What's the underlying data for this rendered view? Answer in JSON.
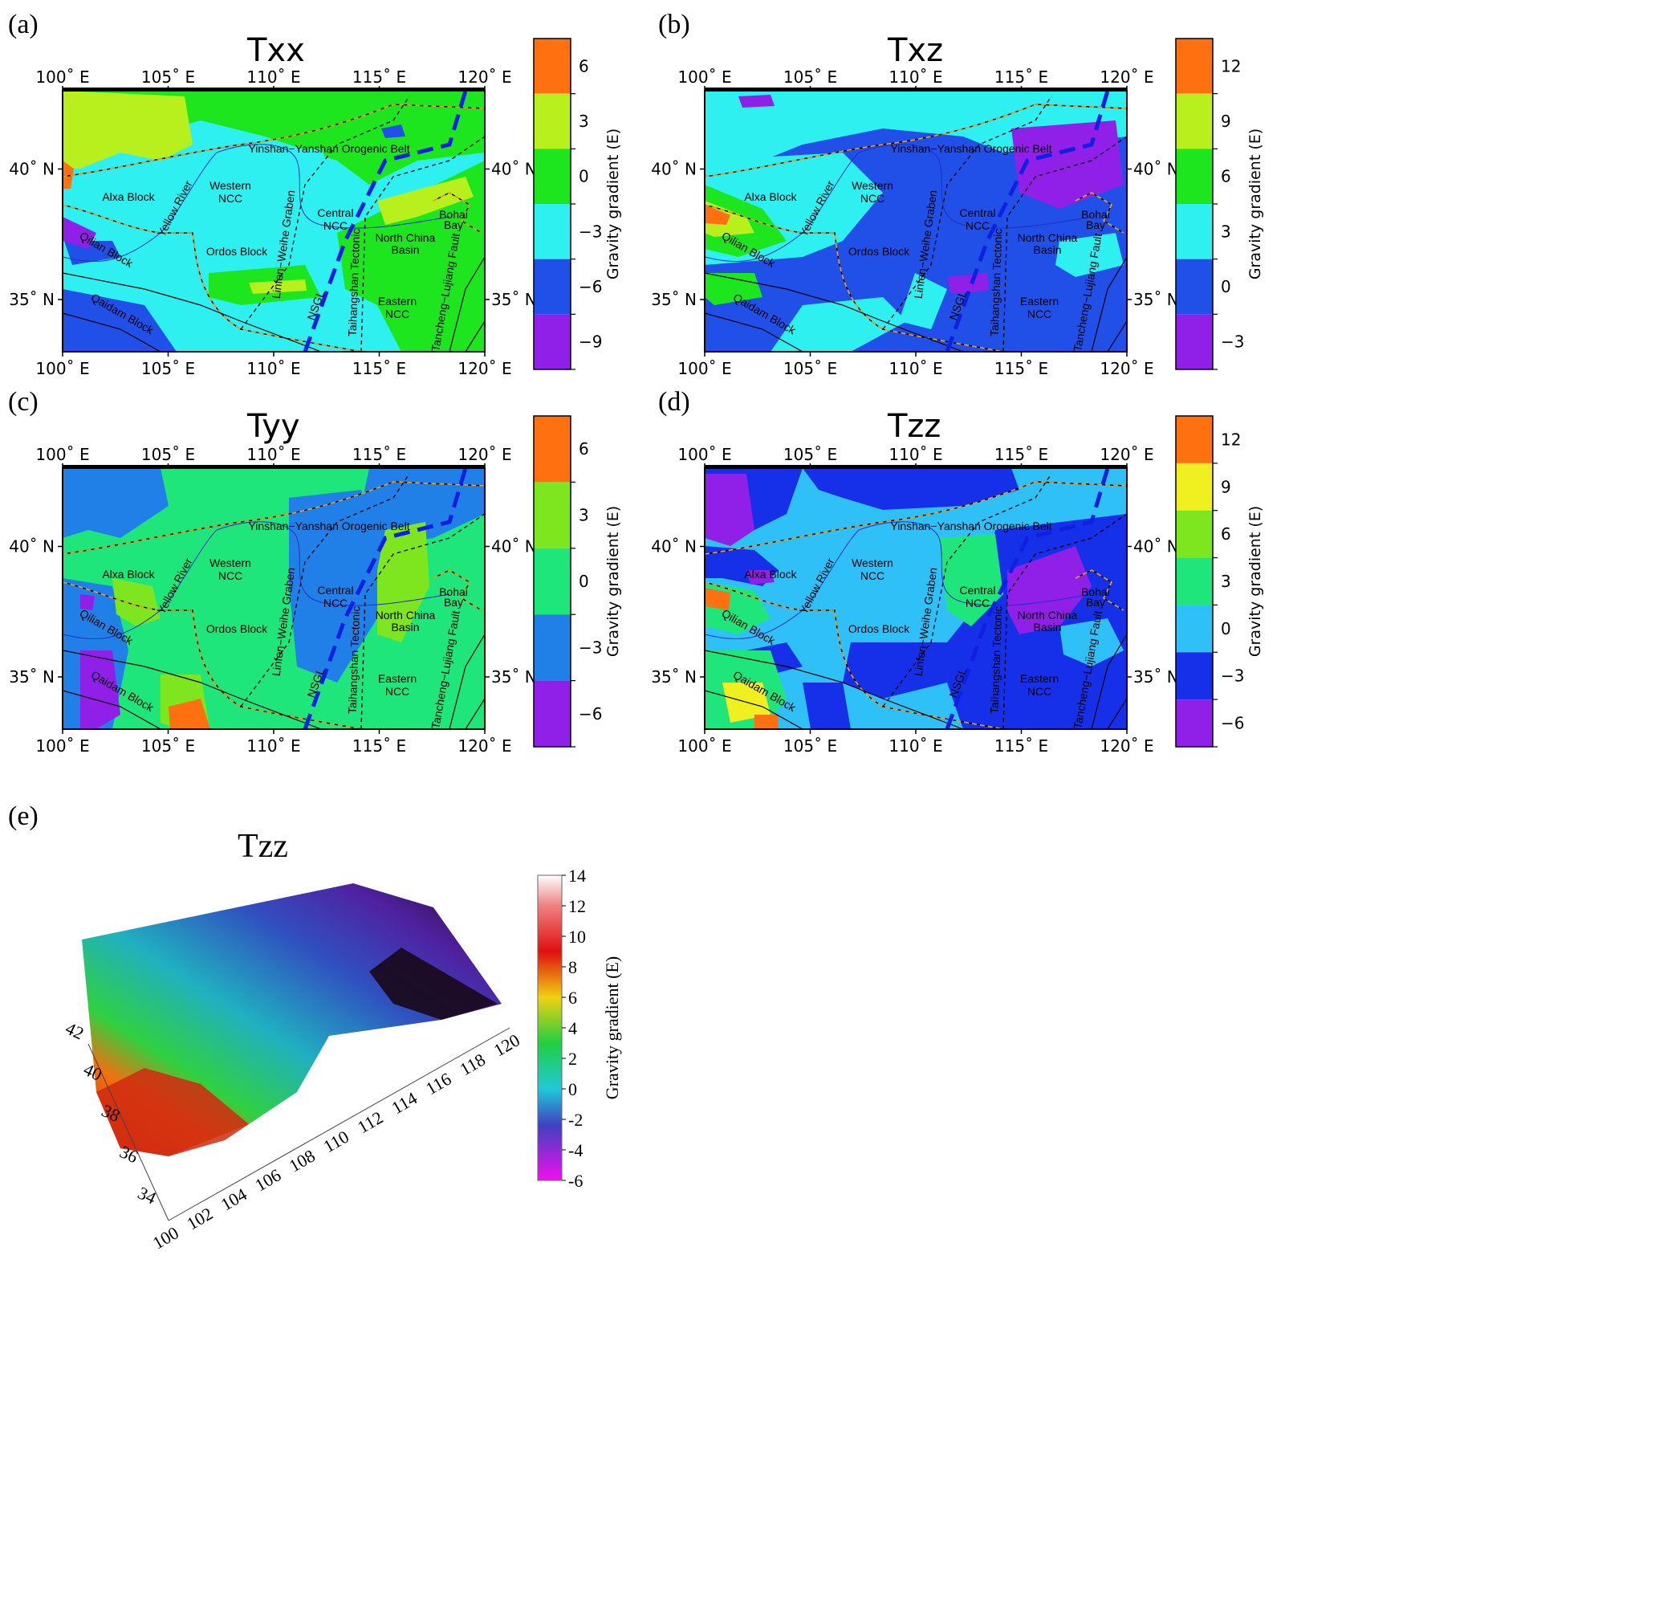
{
  "panels": [
    {
      "label": "(a)",
      "title": "Txx",
      "cbar_ticks": [
        "6",
        "3",
        "0",
        "−3",
        "−6",
        "−9"
      ],
      "cbar_label": "Gravity gradient (E)"
    },
    {
      "label": "(b)",
      "title": "Txz",
      "cbar_ticks": [
        "12",
        "9",
        "6",
        "3",
        "0",
        "−3"
      ],
      "cbar_label": "Gravity gradient (E)"
    },
    {
      "label": "(c)",
      "title": "Tyy",
      "cbar_ticks": [
        "6",
        "3",
        "0",
        "−3",
        "−6"
      ],
      "cbar_label": "Gravity gradient (E)"
    },
    {
      "label": "(d)",
      "title": "Tzz",
      "cbar_ticks": [
        "12",
        "9",
        "6",
        "3",
        "0",
        "−3",
        "−6"
      ],
      "cbar_label": "Gravity gradient (E)"
    },
    {
      "label": "(e)",
      "title": "Tzz",
      "cbar_ticks": [
        "14",
        "12",
        "10",
        "8",
        "6",
        "4",
        "2",
        "0",
        "-2",
        "-4",
        "-6"
      ],
      "cbar_label": "Gravity gradient (E)"
    }
  ],
  "axes": {
    "lon_ticks": [
      "100˚ E",
      "105˚ E",
      "110˚ E",
      "115˚ E",
      "120˚ E"
    ],
    "lat_ticks": [
      "40˚ N",
      "35˚ N"
    ]
  },
  "regions": [
    "Yinshan−Yanshan Orogenic Belt",
    "Alxa Block",
    "Western",
    "NCC",
    "Central",
    "NCC",
    "Bohai",
    "Bay",
    "Yellow River",
    "Qilian Block",
    "Ordos Block",
    "North China",
    "Basin",
    "Linfen−Weihe Graben",
    "NSGL",
    "Taihangshan Tectonic",
    "Eastern",
    "NCC",
    "Tancheng−Lujiang Fault",
    "Qaidam Block"
  ],
  "panel_e": {
    "x_ticks": [
      "100",
      "102",
      "104",
      "106",
      "108",
      "110",
      "112",
      "114",
      "116",
      "118",
      "120"
    ],
    "y_ticks": [
      "34",
      "36",
      "38",
      "40",
      "42"
    ]
  },
  "chart_data": [
    {
      "type": "heatmap",
      "title": "Txx",
      "colorbar_label": "Gravity gradient (E)",
      "colorbar_ticks": [
        6,
        3,
        0,
        -3,
        -6,
        -9
      ],
      "lon_range": [
        100,
        120
      ],
      "lat_range": [
        33,
        43
      ]
    },
    {
      "type": "heatmap",
      "title": "Txz",
      "colorbar_label": "Gravity gradient (E)",
      "colorbar_ticks": [
        12,
        9,
        6,
        3,
        0,
        -3
      ],
      "lon_range": [
        100,
        120
      ],
      "lat_range": [
        33,
        43
      ]
    },
    {
      "type": "heatmap",
      "title": "Tyy",
      "colorbar_label": "Gravity gradient (E)",
      "colorbar_ticks": [
        6,
        3,
        0,
        -3,
        -6
      ],
      "lon_range": [
        100,
        120
      ],
      "lat_range": [
        33,
        43
      ]
    },
    {
      "type": "heatmap",
      "title": "Tzz",
      "colorbar_label": "Gravity gradient (E)",
      "colorbar_ticks": [
        12,
        9,
        6,
        3,
        0,
        -3,
        -6
      ],
      "lon_range": [
        100,
        120
      ],
      "lat_range": [
        33,
        43
      ]
    },
    {
      "type": "heatmap",
      "title": "Tzz",
      "colorbar_label": "Gravity gradient (E)",
      "colorbar_ticks": [
        14,
        12,
        10,
        8,
        6,
        4,
        2,
        0,
        -2,
        -4,
        -6
      ],
      "x_ticks": [
        100,
        102,
        104,
        106,
        108,
        110,
        112,
        114,
        116,
        118,
        120
      ],
      "y_ticks": [
        34,
        36,
        38,
        40,
        42
      ]
    }
  ]
}
